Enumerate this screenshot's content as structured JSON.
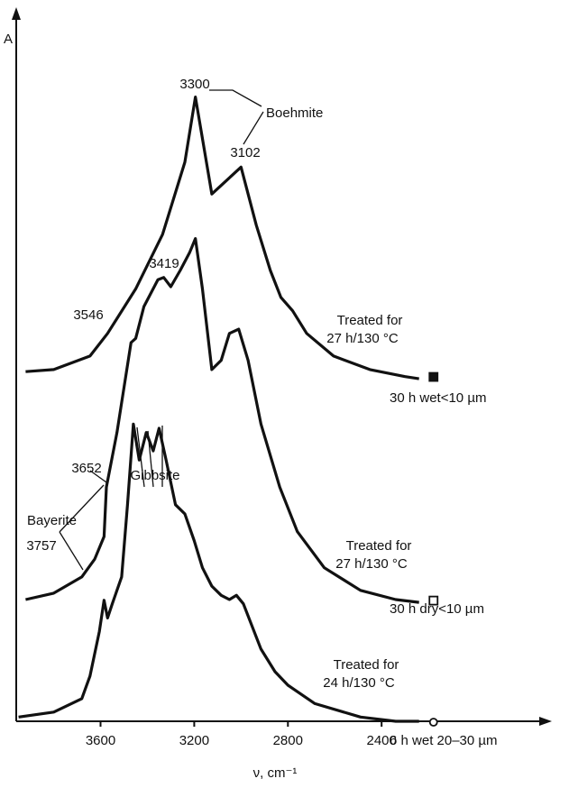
{
  "chart_data": {
    "type": "line",
    "y_label": "A",
    "x_label": "ν, cm⁻¹",
    "xlim": [
      3960,
      1700
    ],
    "xticks": [
      3600,
      3200,
      2800,
      2400
    ],
    "ylim": [
      0,
      100
    ],
    "series": [
      {
        "name": "30 h wet<10 µm",
        "color": "#111111",
        "marker": "filled-square",
        "x": [
          3920,
          3800,
          3645,
          3570,
          3450,
          3335,
          3240,
          3195,
          3125,
          3000,
          2935,
          2875,
          2830,
          2780,
          2720,
          2605,
          2450,
          2300,
          2240
        ],
        "values": [
          49.4,
          49.7,
          51.6,
          54.8,
          61.1,
          68.8,
          79.0,
          88.2,
          74.5,
          78.3,
          70.1,
          63.7,
          59.9,
          58.0,
          54.8,
          51.6,
          49.7,
          48.7,
          48.4
        ]
      },
      {
        "name": "30 h dry<10 µm",
        "color": "#111111",
        "marker": "open-square",
        "x": [
          3920,
          3800,
          3680,
          3625,
          3585,
          3575,
          3530,
          3470,
          3450,
          3415,
          3355,
          3330,
          3300,
          3260,
          3220,
          3195,
          3165,
          3125,
          3085,
          3050,
          3010,
          2970,
          2915,
          2835,
          2760,
          2645,
          2490,
          2340,
          2240
        ],
        "values": [
          17.2,
          18.1,
          20.4,
          22.9,
          26.1,
          33.1,
          40.8,
          53.5,
          54.1,
          58.6,
          62.4,
          62.7,
          61.4,
          63.7,
          66.2,
          68.2,
          61.1,
          49.7,
          51.0,
          54.8,
          55.4,
          51.0,
          42.0,
          33.1,
          26.8,
          21.7,
          18.5,
          17.2,
          16.8
        ]
      },
      {
        "name": "6 h wet 20–30 µm",
        "color": "#111111",
        "marker": "open-circle",
        "x": [
          3950,
          3800,
          3680,
          3645,
          3605,
          3585,
          3570,
          3550,
          3510,
          3485,
          3460,
          3435,
          3405,
          3375,
          3350,
          3320,
          3280,
          3240,
          3200,
          3165,
          3125,
          3085,
          3050,
          3020,
          2990,
          2915,
          2855,
          2800,
          2685,
          2490,
          2340,
          2240
        ],
        "values": [
          0.6,
          1.3,
          3.2,
          6.4,
          12.7,
          17.1,
          14.6,
          16.6,
          20.4,
          30.6,
          42.0,
          36.9,
          40.8,
          38.2,
          41.4,
          36.9,
          30.6,
          29.3,
          25.5,
          21.7,
          19.1,
          17.8,
          17.2,
          17.8,
          16.6,
          10.2,
          7.0,
          5.1,
          2.5,
          0.6,
          0,
          0
        ]
      }
    ],
    "annotations": [
      "3300",
      "Boehmite",
      "3102",
      "3419",
      "3546",
      "Treated for",
      "27 h/130 °C",
      "Gibbsite",
      "Bayerite",
      "3652",
      "3757",
      "Treated for",
      "27 h/130 °C",
      "Treated for",
      "24 h/130 °C"
    ]
  }
}
